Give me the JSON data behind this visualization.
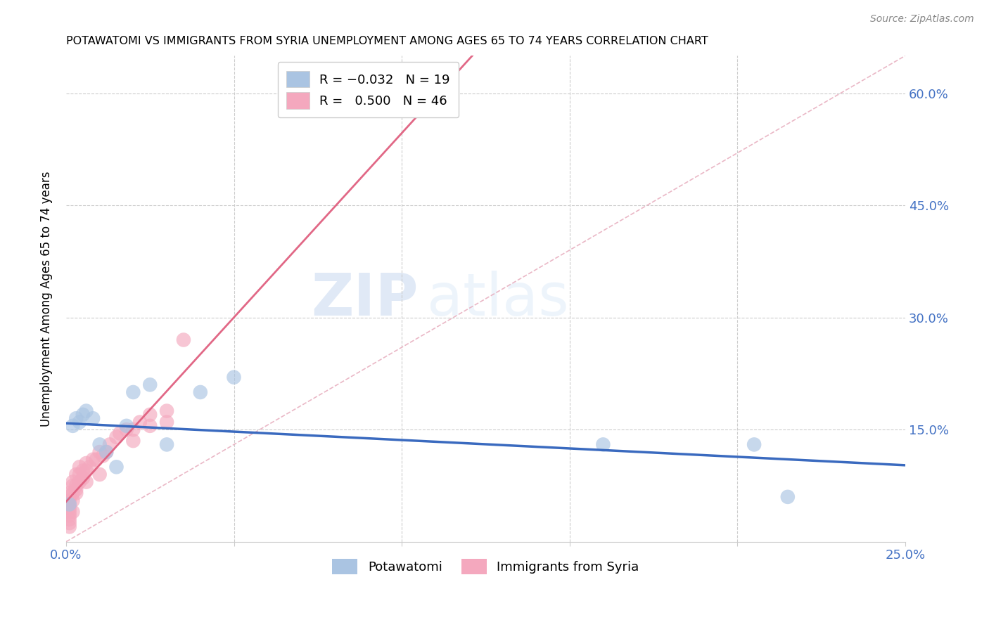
{
  "title": "POTAWATOMI VS IMMIGRANTS FROM SYRIA UNEMPLOYMENT AMONG AGES 65 TO 74 YEARS CORRELATION CHART",
  "source": "Source: ZipAtlas.com",
  "ylabel_label": "Unemployment Among Ages 65 to 74 years",
  "xlim": [
    0.0,
    0.25
  ],
  "ylim": [
    0.0,
    0.65
  ],
  "xticks": [
    0.0,
    0.05,
    0.1,
    0.15,
    0.2,
    0.25
  ],
  "xticklabels": [
    "0.0%",
    "",
    "",
    "",
    "",
    "25.0%"
  ],
  "yticks_right": [
    0.0,
    0.15,
    0.3,
    0.45,
    0.6
  ],
  "yticklabels_right": [
    "",
    "15.0%",
    "30.0%",
    "45.0%",
    "60.0%"
  ],
  "potawatomi_color": "#aac4e2",
  "syria_color": "#f4a8be",
  "potawatomi_line_color": "#3a6abf",
  "syria_line_color": "#e06080",
  "diagonal_line_color": "#e8b0c0",
  "R_potawatomi": -0.032,
  "N_potawatomi": 19,
  "R_syria": 0.5,
  "N_syria": 46,
  "potawatomi_x": [
    0.001,
    0.002,
    0.003,
    0.004,
    0.005,
    0.006,
    0.008,
    0.01,
    0.012,
    0.015,
    0.018,
    0.02,
    0.025,
    0.03,
    0.04,
    0.05,
    0.16,
    0.205,
    0.215
  ],
  "potawatomi_y": [
    0.05,
    0.155,
    0.165,
    0.16,
    0.17,
    0.175,
    0.165,
    0.13,
    0.12,
    0.1,
    0.155,
    0.2,
    0.21,
    0.13,
    0.2,
    0.22,
    0.13,
    0.13,
    0.06
  ],
  "syria_x": [
    0.001,
    0.001,
    0.001,
    0.001,
    0.001,
    0.001,
    0.001,
    0.001,
    0.001,
    0.001,
    0.002,
    0.002,
    0.002,
    0.002,
    0.002,
    0.003,
    0.003,
    0.003,
    0.003,
    0.004,
    0.004,
    0.004,
    0.005,
    0.005,
    0.006,
    0.006,
    0.006,
    0.007,
    0.008,
    0.009,
    0.01,
    0.01,
    0.011,
    0.012,
    0.013,
    0.015,
    0.016,
    0.018,
    0.02,
    0.02,
    0.022,
    0.025,
    0.025,
    0.03,
    0.03,
    0.035
  ],
  "syria_y": [
    0.02,
    0.025,
    0.03,
    0.035,
    0.04,
    0.045,
    0.05,
    0.055,
    0.06,
    0.065,
    0.04,
    0.055,
    0.065,
    0.075,
    0.08,
    0.065,
    0.07,
    0.075,
    0.09,
    0.08,
    0.09,
    0.1,
    0.085,
    0.095,
    0.08,
    0.095,
    0.105,
    0.1,
    0.11,
    0.11,
    0.09,
    0.12,
    0.115,
    0.12,
    0.13,
    0.14,
    0.145,
    0.15,
    0.135,
    0.15,
    0.16,
    0.155,
    0.17,
    0.16,
    0.175,
    0.27
  ],
  "background_color": "#ffffff",
  "grid_color": "#cccccc",
  "watermark_zip": "ZIP",
  "watermark_atlas": "atlas",
  "legend_box_color": "#f8f8f8"
}
